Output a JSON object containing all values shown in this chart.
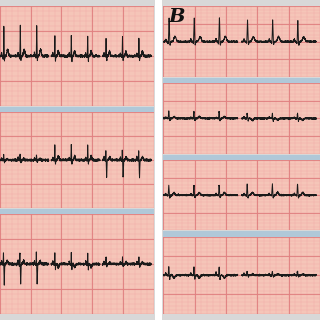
{
  "label_B": "B",
  "bg_color": "#f5c5b8",
  "grid_major_color": "#e08080",
  "grid_minor_color": "#f0a0a0",
  "ecg_color": "#1a1a1a",
  "separator_color": "#b0c8d8",
  "label_color": "#111111",
  "figsize": [
    3.2,
    3.2
  ],
  "dpi": 100
}
